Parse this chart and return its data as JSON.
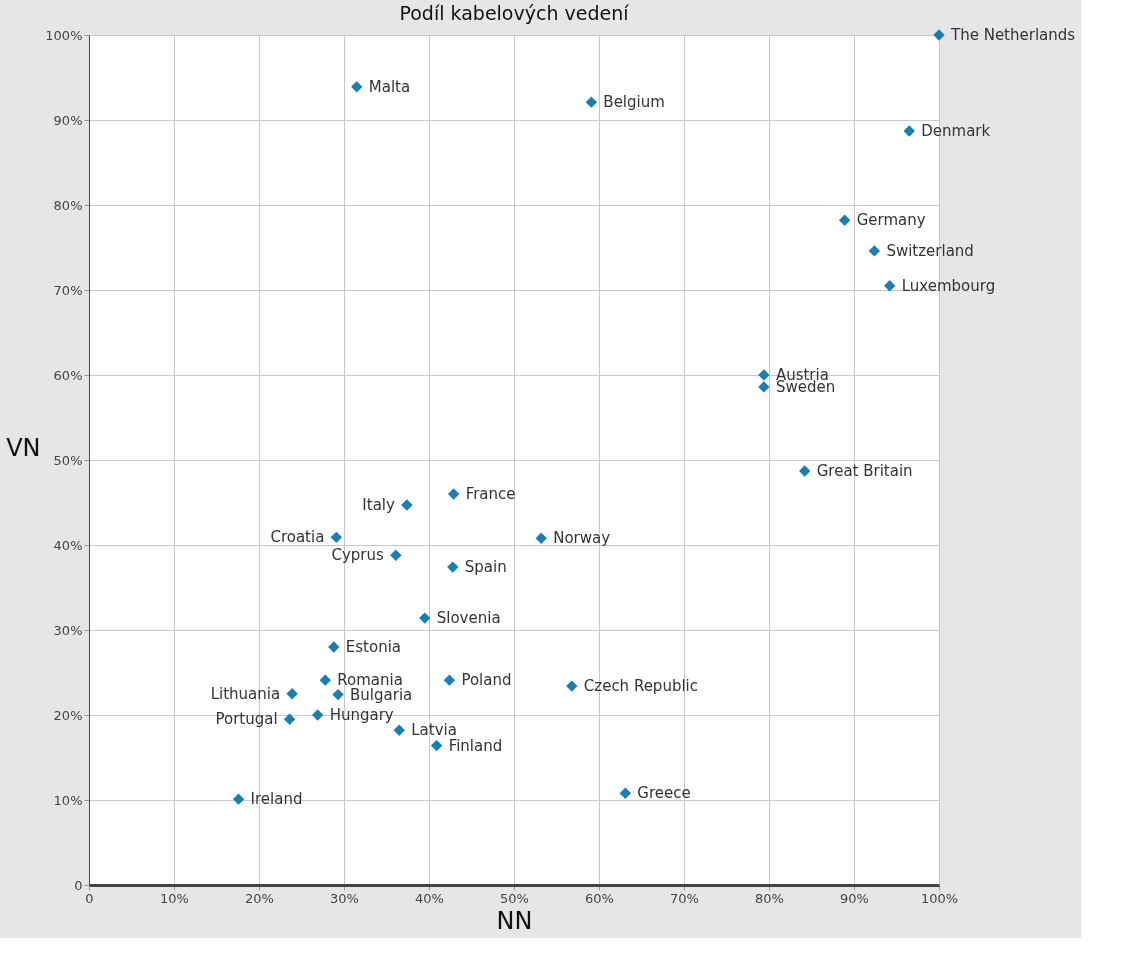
{
  "chart_data": {
    "type": "scatter",
    "title": "Podíl kabelových vedení",
    "xlabel": "NN",
    "ylabel": "VN",
    "x": [
      100,
      31.5,
      59.1,
      96.5,
      88.9,
      92.4,
      94.2,
      79.4,
      79.4,
      84.2,
      42.9,
      37.4,
      29.1,
      53.2,
      36.1,
      42.8,
      39.5,
      28.8,
      27.8,
      42.4,
      56.8,
      23.9,
      29.3,
      26.9,
      23.6,
      36.5,
      40.9,
      63.1,
      17.6
    ],
    "series": [
      {
        "color": "#1a7fae",
        "values": [
          100,
          93.9,
          92.1,
          88.7,
          78.2,
          74.6,
          70.5,
          60.0,
          58.6,
          48.7,
          46.0,
          44.7,
          40.9,
          40.8,
          38.8,
          37.4,
          31.4,
          28.0,
          24.1,
          24.1,
          23.4,
          22.5,
          22.4,
          20.0,
          19.5,
          18.2,
          16.4,
          10.8,
          10.1
        ]
      }
    ],
    "annotations": [
      {
        "text": "The Netherlands",
        "x": 100,
        "y": 100
      },
      {
        "text": "Malta",
        "x": 31.5,
        "y": 93.9
      },
      {
        "text": "Belgium",
        "x": 59.1,
        "y": 92.1
      },
      {
        "text": "Denmark",
        "x": 96.5,
        "y": 88.7
      },
      {
        "text": "Germany",
        "x": 88.9,
        "y": 78.2
      },
      {
        "text": "Switzerland",
        "x": 92.4,
        "y": 74.6
      },
      {
        "text": "Luxembourg",
        "x": 94.2,
        "y": 70.5
      },
      {
        "text": "Austria",
        "x": 79.4,
        "y": 60.0
      },
      {
        "text": "Sweden",
        "x": 79.4,
        "y": 58.6
      },
      {
        "text": "Great Britain",
        "x": 84.2,
        "y": 48.7
      },
      {
        "text": "France",
        "x": 42.9,
        "y": 46.0
      },
      {
        "text": "Italy",
        "x": 37.4,
        "y": 44.7
      },
      {
        "text": "Croatia",
        "x": 29.1,
        "y": 40.9
      },
      {
        "text": "Norway",
        "x": 53.2,
        "y": 40.8
      },
      {
        "text": "Cyprus",
        "x": 36.1,
        "y": 38.8
      },
      {
        "text": "Spain",
        "x": 42.8,
        "y": 37.4
      },
      {
        "text": "Slovenia",
        "x": 39.5,
        "y": 31.4
      },
      {
        "text": "Estonia",
        "x": 28.8,
        "y": 28.0
      },
      {
        "text": "Romania",
        "x": 27.8,
        "y": 24.1
      },
      {
        "text": "Poland",
        "x": 42.4,
        "y": 24.1
      },
      {
        "text": "Czech Republic",
        "x": 56.8,
        "y": 23.4
      },
      {
        "text": "Lithuania",
        "x": 23.9,
        "y": 22.5
      },
      {
        "text": "Bulgaria",
        "x": 29.3,
        "y": 22.4
      },
      {
        "text": "Hungary",
        "x": 26.9,
        "y": 20.0
      },
      {
        "text": "Portugal",
        "x": 23.6,
        "y": 19.5
      },
      {
        "text": "Latvia",
        "x": 36.5,
        "y": 18.2
      },
      {
        "text": "Finland",
        "x": 40.9,
        "y": 16.4
      },
      {
        "text": "Greece",
        "x": 63.1,
        "y": 10.8
      },
      {
        "text": "Ireland",
        "x": 17.6,
        "y": 10.1
      }
    ],
    "xlim": [
      0,
      100
    ],
    "ylim": [
      0,
      100
    ],
    "xticks": [
      0,
      {
        "value": 10,
        "label": "10%"
      },
      {
        "value": 20,
        "label": "20%"
      },
      {
        "value": 30,
        "label": "30%"
      },
      {
        "value": 40,
        "label": "40%"
      },
      {
        "value": 50,
        "label": "50%"
      },
      {
        "value": 60,
        "label": "60%"
      },
      {
        "value": 70,
        "label": "70%"
      },
      {
        "value": 80,
        "label": "80%"
      },
      {
        "value": 90,
        "label": "90%"
      },
      {
        "value": 100,
        "label": "100%"
      }
    ],
    "yticks": [
      0,
      {
        "value": 10,
        "label": "10%"
      },
      {
        "value": 20,
        "label": "20%"
      },
      {
        "value": 30,
        "label": "30%"
      },
      {
        "value": 40,
        "label": "40%"
      },
      {
        "value": 50,
        "label": "50%"
      },
      {
        "value": 60,
        "label": "60%"
      },
      {
        "value": 70,
        "label": "70%"
      },
      {
        "value": 80,
        "label": "80%"
      },
      {
        "value": 90,
        "label": "90%"
      },
      {
        "value": 100,
        "label": "100%"
      }
    ],
    "grid": true,
    "marker": "diamond"
  }
}
